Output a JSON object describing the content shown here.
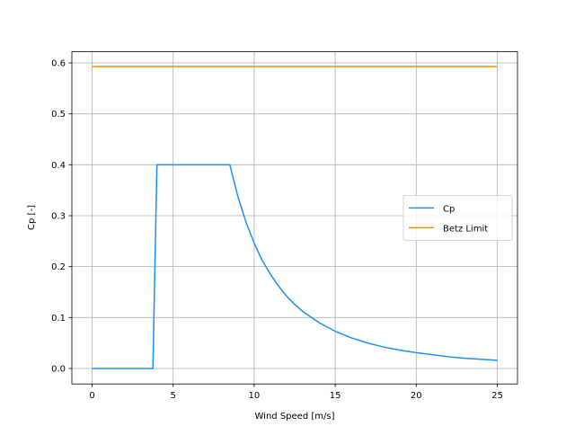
{
  "chart_data": {
    "type": "line",
    "xlabel": "Wind Speed [m/s]",
    "ylabel": "Cp [-]",
    "xlim": [
      -1.25,
      26.25
    ],
    "ylim": [
      -0.0304,
      0.6219
    ],
    "xticks": [
      0,
      5,
      10,
      15,
      20,
      25
    ],
    "yticks": [
      {
        "value": 0,
        "label": "0.0"
      },
      0.1,
      0.2,
      0.3,
      0.4,
      0.5,
      0.6
    ],
    "grid": true,
    "legend": "center right",
    "series": [
      {
        "name": "Cp",
        "color": "#1f8ff0",
        "x": [
          0,
          1,
          2,
          3,
          3.75,
          4,
          5,
          6,
          7,
          8,
          8.5,
          9,
          9.5,
          10,
          10.5,
          11,
          11.5,
          12,
          12.5,
          13,
          14,
          15,
          16,
          17,
          18,
          19,
          20,
          21,
          22,
          23,
          24,
          25
        ],
        "values": [
          0,
          0,
          0,
          0,
          0,
          0.4,
          0.4,
          0.4,
          0.4,
          0.4,
          0.4,
          0.337,
          0.287,
          0.246,
          0.212,
          0.185,
          0.162,
          0.142,
          0.126,
          0.112,
          0.09,
          0.073,
          0.06,
          0.05,
          0.042,
          0.036,
          0.031,
          0.027,
          0.023,
          0.02,
          0.018,
          0.016
        ]
      },
      {
        "name": "Betz Limit",
        "color": "#ff8c00",
        "x": [
          0,
          25
        ],
        "values": [
          0.593,
          0.593
        ]
      }
    ]
  }
}
